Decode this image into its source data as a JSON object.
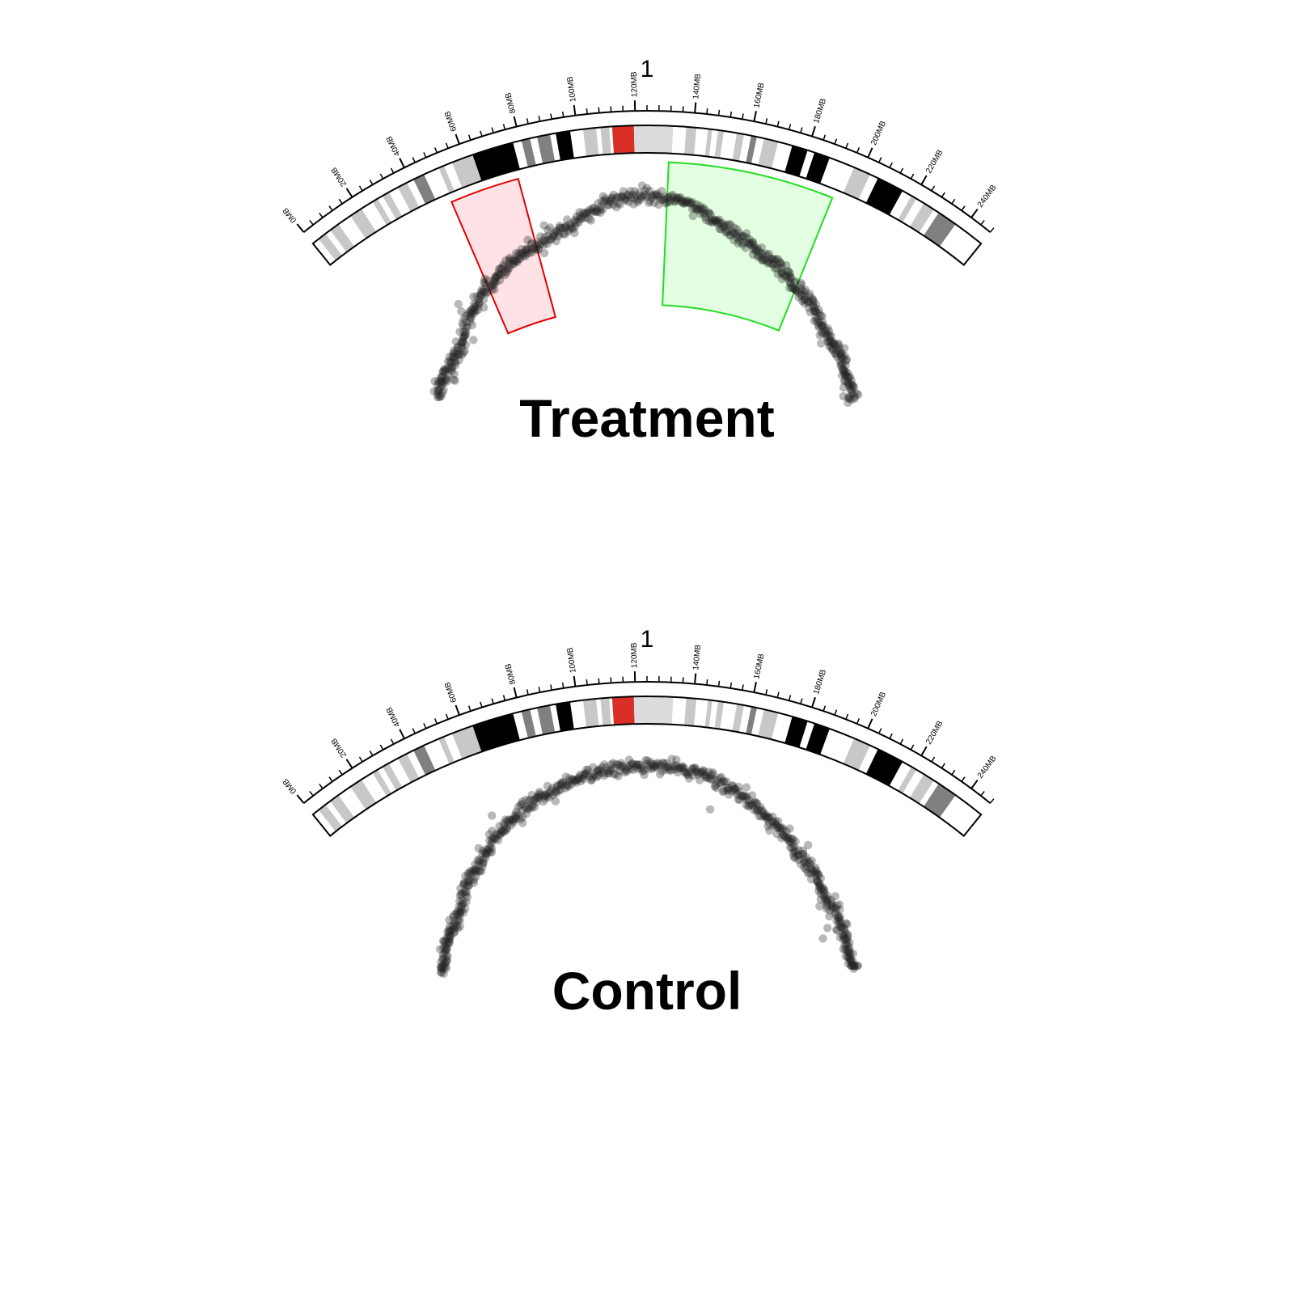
{
  "chart_data": [
    {
      "type": "scatter",
      "title": "Treatment",
      "chromosome": "1",
      "axis": {
        "unit": "MB",
        "range": [
          0,
          248
        ],
        "major_ticks": [
          0,
          20,
          40,
          60,
          80,
          100,
          120,
          140,
          160,
          180,
          200,
          220,
          240
        ],
        "tick_labels": [
          "0MB",
          "20MB",
          "40MB",
          "60MB",
          "80MB",
          "100MB",
          "120MB",
          "140MB",
          "160MB",
          "180MB",
          "200MB",
          "220MB",
          "240MB"
        ],
        "minor_tick_step": 4
      },
      "ideogram": [
        {
          "start": 0,
          "end": 2.5,
          "stain": "gneg"
        },
        {
          "start": 2.5,
          "end": 5.5,
          "stain": "gpos25"
        },
        {
          "start": 5.5,
          "end": 7.5,
          "stain": "gneg"
        },
        {
          "start": 7.5,
          "end": 11,
          "stain": "gpos25"
        },
        {
          "start": 11,
          "end": 16,
          "stain": "gneg"
        },
        {
          "start": 16,
          "end": 20.5,
          "stain": "gpos25"
        },
        {
          "start": 20.5,
          "end": 25,
          "stain": "gneg"
        },
        {
          "start": 25,
          "end": 27,
          "stain": "gpos25"
        },
        {
          "start": 27,
          "end": 29,
          "stain": "gneg"
        },
        {
          "start": 29,
          "end": 31.5,
          "stain": "gpos25"
        },
        {
          "start": 31.5,
          "end": 35,
          "stain": "gneg"
        },
        {
          "start": 35,
          "end": 38.5,
          "stain": "gpos25"
        },
        {
          "start": 38.5,
          "end": 41,
          "stain": "gneg"
        },
        {
          "start": 41,
          "end": 45,
          "stain": "gpos75"
        },
        {
          "start": 45,
          "end": 50.5,
          "stain": "gneg"
        },
        {
          "start": 50.5,
          "end": 52.5,
          "stain": "gpos25"
        },
        {
          "start": 52.5,
          "end": 55.5,
          "stain": "gneg"
        },
        {
          "start": 55.5,
          "end": 63,
          "stain": "gpos25"
        },
        {
          "start": 63,
          "end": 77.5,
          "stain": "gpos100"
        },
        {
          "start": 77.5,
          "end": 80.5,
          "stain": "gneg"
        },
        {
          "start": 80.5,
          "end": 83.5,
          "stain": "gpos75"
        },
        {
          "start": 83.5,
          "end": 86,
          "stain": "gneg"
        },
        {
          "start": 86,
          "end": 90.5,
          "stain": "gpos75"
        },
        {
          "start": 90.5,
          "end": 92.5,
          "stain": "gneg"
        },
        {
          "start": 92.5,
          "end": 97.5,
          "stain": "gpos100"
        },
        {
          "start": 97.5,
          "end": 102,
          "stain": "gneg"
        },
        {
          "start": 102,
          "end": 106.5,
          "stain": "gpos25"
        },
        {
          "start": 106.5,
          "end": 108,
          "stain": "gneg"
        },
        {
          "start": 108,
          "end": 111,
          "stain": "gpos25"
        },
        {
          "start": 111,
          "end": 112,
          "stain": "gneg"
        },
        {
          "start": 112,
          "end": 119.5,
          "stain": "acen"
        },
        {
          "start": 119.5,
          "end": 133,
          "stain": "gvar"
        },
        {
          "start": 133,
          "end": 137.5,
          "stain": "gneg"
        },
        {
          "start": 137.5,
          "end": 141,
          "stain": "gpos25"
        },
        {
          "start": 141,
          "end": 145,
          "stain": "gneg"
        },
        {
          "start": 145,
          "end": 146.5,
          "stain": "gpos25"
        },
        {
          "start": 146.5,
          "end": 148.5,
          "stain": "gneg"
        },
        {
          "start": 148.5,
          "end": 150.5,
          "stain": "gpos25"
        },
        {
          "start": 150.5,
          "end": 155,
          "stain": "gneg"
        },
        {
          "start": 155,
          "end": 157.5,
          "stain": "gpos25"
        },
        {
          "start": 157.5,
          "end": 160,
          "stain": "gneg"
        },
        {
          "start": 160,
          "end": 162,
          "stain": "gpos75"
        },
        {
          "start": 162,
          "end": 164.5,
          "stain": "gneg"
        },
        {
          "start": 164.5,
          "end": 169.5,
          "stain": "gpos25"
        },
        {
          "start": 169.5,
          "end": 174.5,
          "stain": "gneg"
        },
        {
          "start": 174.5,
          "end": 180,
          "stain": "gpos100"
        },
        {
          "start": 180,
          "end": 182.5,
          "stain": "gneg"
        },
        {
          "start": 182.5,
          "end": 188,
          "stain": "gpos100"
        },
        {
          "start": 188,
          "end": 197,
          "stain": "gneg"
        },
        {
          "start": 197,
          "end": 203,
          "stain": "gpos25"
        },
        {
          "start": 203,
          "end": 206,
          "stain": "gneg"
        },
        {
          "start": 206,
          "end": 215.5,
          "stain": "gpos100"
        },
        {
          "start": 215.5,
          "end": 219,
          "stain": "gneg"
        },
        {
          "start": 219,
          "end": 221,
          "stain": "gpos25"
        },
        {
          "start": 221,
          "end": 224,
          "stain": "gneg"
        },
        {
          "start": 224,
          "end": 228,
          "stain": "gpos25"
        },
        {
          "start": 228,
          "end": 230,
          "stain": "gneg"
        },
        {
          "start": 230,
          "end": 237,
          "stain": "gpos75"
        },
        {
          "start": 237,
          "end": 248,
          "stain": "gneg"
        }
      ],
      "highlights": [
        {
          "start": 50,
          "end": 76,
          "color": "#e00000",
          "fill": "#ffdde2"
        },
        {
          "start": 132,
          "end": 194,
          "color": "#22dd22",
          "fill": "#ddffdd"
        }
      ],
      "points": {
        "n": 650,
        "seed": 11,
        "color": "#222222",
        "opacity": 0.32,
        "x_range": [
          0,
          248
        ],
        "trend": [
          [
            0,
            15.0
          ],
          [
            20,
            24.0
          ],
          [
            40,
            42.0
          ],
          [
            50,
            49.0
          ],
          [
            60,
            55.0
          ],
          [
            76,
            60.0
          ],
          [
            90,
            67.0
          ],
          [
            110,
            77.0
          ],
          [
            124,
            79.0
          ],
          [
            140,
            76.0
          ],
          [
            160,
            64.0
          ],
          [
            180,
            55.0
          ],
          [
            200,
            44.0
          ],
          [
            220,
            30.0
          ],
          [
            248,
            12.0
          ]
        ],
        "noise": 1.8,
        "y_range": [
          0,
          100
        ]
      }
    },
    {
      "type": "scatter",
      "title": "Control",
      "chromosome": "1",
      "axis": {
        "unit": "MB",
        "range": [
          0,
          248
        ],
        "major_ticks": [
          0,
          20,
          40,
          60,
          80,
          100,
          120,
          140,
          160,
          180,
          200,
          220,
          240
        ],
        "tick_labels": [
          "0MB",
          "20MB",
          "40MB",
          "60MB",
          "80MB",
          "100MB",
          "120MB",
          "140MB",
          "160MB",
          "180MB",
          "200MB",
          "220MB",
          "240MB"
        ],
        "minor_tick_step": 4
      },
      "ideogram": "same-as-treatment",
      "highlights": [],
      "points": {
        "n": 650,
        "seed": 29,
        "color": "#222222",
        "opacity": 0.32,
        "x_range": [
          0,
          248
        ],
        "trend": [
          [
            0,
            12.0
          ],
          [
            20,
            26.0
          ],
          [
            40,
            44.0
          ],
          [
            60,
            60.0
          ],
          [
            80,
            70.0
          ],
          [
            100,
            77.0
          ],
          [
            124,
            80.0
          ],
          [
            140,
            78.0
          ],
          [
            160,
            72.0
          ],
          [
            180,
            60.0
          ],
          [
            200,
            46.0
          ],
          [
            220,
            32.0
          ],
          [
            248,
            12.0
          ]
        ],
        "noise": 1.8,
        "y_range": [
          0,
          100
        ]
      }
    }
  ],
  "colors": {
    "gneg": "#ffffff",
    "gpos25": "#c8c8c8",
    "gpos50": "#a0a0a0",
    "gpos75": "#808080",
    "gpos100": "#000000",
    "acen": "#d92f27",
    "gvar": "#dcdcdc"
  }
}
